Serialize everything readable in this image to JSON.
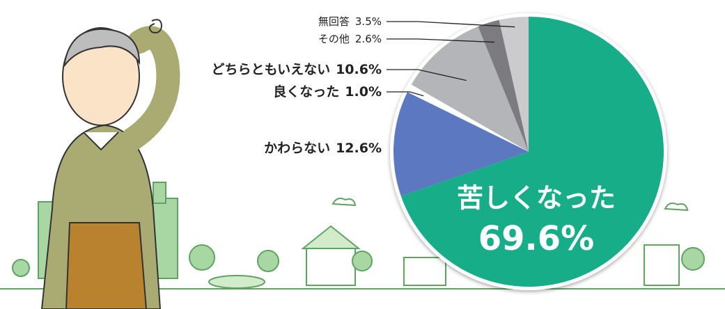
{
  "chart_data": {
    "type": "pie",
    "categories": [
      "苦しくなった",
      "かわらない",
      "良くなった",
      "どちらともいえない",
      "その他",
      "無回答"
    ],
    "values": [
      69.6,
      12.6,
      1.0,
      10.6,
      2.6,
      3.5
    ],
    "value_labels": [
      "69.6%",
      "12.6%",
      "1.0%",
      "10.6%",
      "2.6%",
      "3.5%"
    ],
    "colors": [
      "#16ad88",
      "#5b78c0",
      "#ffffff",
      "#b4b5b9",
      "#7b7c80",
      "#cbcbce"
    ]
  }
}
